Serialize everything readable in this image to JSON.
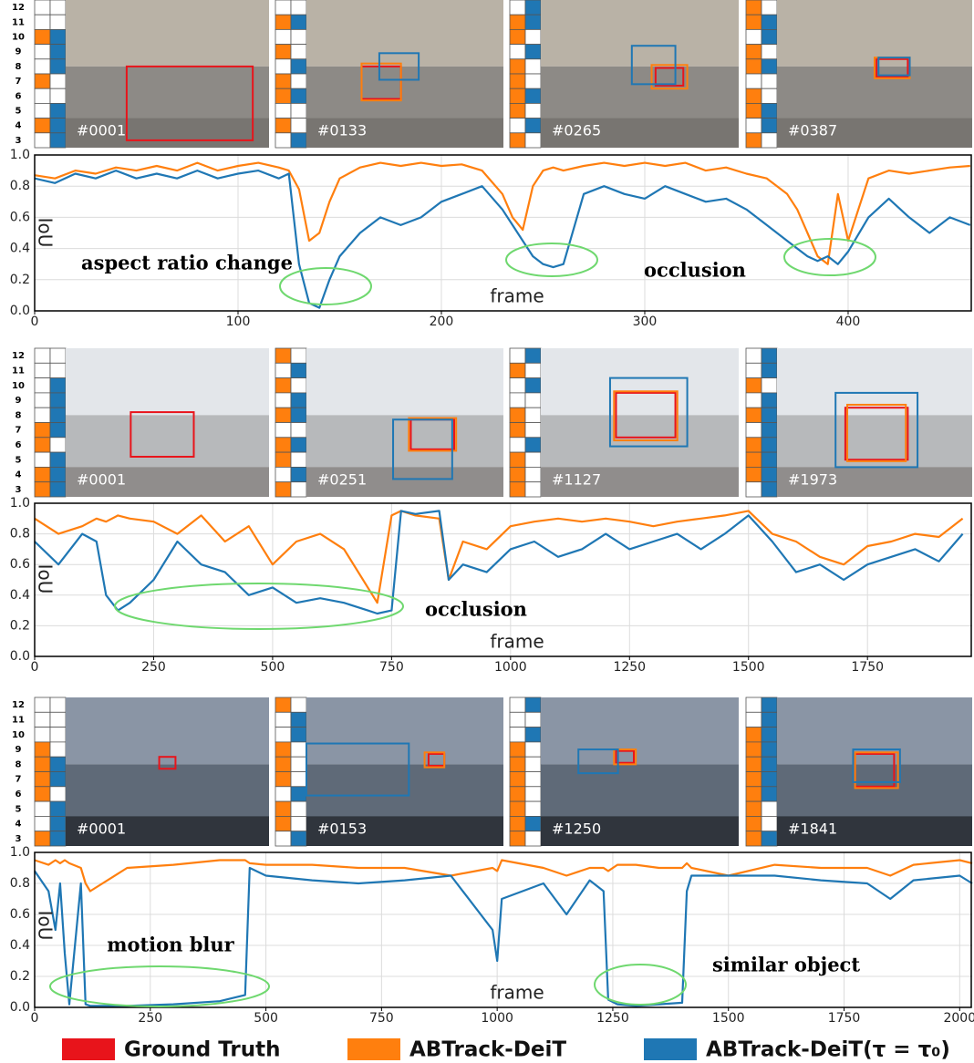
{
  "ground_truth": {
    "name": "Ground Truth",
    "color": "#e8141b"
  },
  "chart_data": [
    {
      "type": "line",
      "x_label": "frame",
      "y_label": "IoU",
      "annotations": [
        "aspect ratio change",
        "occlusion"
      ],
      "layer_labels": [
        "12",
        "11",
        "10",
        "9",
        "8",
        "7",
        "6",
        "5",
        "4",
        "3"
      ],
      "frames": [
        {
          "label": "#0001",
          "orange": [
            0,
            0,
            1,
            0,
            0,
            1,
            0,
            0,
            1,
            0
          ],
          "blue": [
            0,
            0,
            1,
            1,
            1,
            0,
            0,
            1,
            1,
            1
          ]
        },
        {
          "label": "#0133",
          "orange": [
            0,
            1,
            0,
            1,
            0,
            1,
            1,
            0,
            1,
            0
          ],
          "blue": [
            0,
            1,
            0,
            0,
            1,
            0,
            1,
            0,
            0,
            1
          ]
        },
        {
          "label": "#0265",
          "orange": [
            0,
            1,
            1,
            0,
            1,
            1,
            1,
            1,
            0,
            1
          ],
          "blue": [
            1,
            1,
            0,
            1,
            0,
            0,
            1,
            0,
            1,
            0
          ]
        },
        {
          "label": "#0387",
          "orange": [
            1,
            1,
            0,
            1,
            1,
            0,
            1,
            1,
            0,
            1
          ],
          "blue": [
            0,
            1,
            1,
            0,
            1,
            0,
            0,
            1,
            1,
            0
          ]
        }
      ],
      "x": [
        0,
        10,
        20,
        30,
        40,
        50,
        60,
        70,
        80,
        90,
        100,
        110,
        120,
        125,
        130,
        135,
        140,
        145,
        150,
        160,
        170,
        180,
        190,
        200,
        210,
        220,
        230,
        235,
        240,
        245,
        250,
        255,
        260,
        270,
        280,
        290,
        300,
        310,
        320,
        330,
        340,
        350,
        360,
        370,
        375,
        380,
        385,
        390,
        395,
        400,
        410,
        420,
        430,
        440,
        450,
        460
      ],
      "series": [
        {
          "name": "ABTrack-DeiT",
          "color": "#ff7f0e",
          "values": [
            0.87,
            0.85,
            0.9,
            0.88,
            0.92,
            0.9,
            0.93,
            0.9,
            0.95,
            0.9,
            0.93,
            0.95,
            0.92,
            0.9,
            0.78,
            0.45,
            0.5,
            0.7,
            0.85,
            0.92,
            0.95,
            0.93,
            0.95,
            0.93,
            0.94,
            0.9,
            0.75,
            0.6,
            0.52,
            0.8,
            0.9,
            0.92,
            0.9,
            0.93,
            0.95,
            0.93,
            0.95,
            0.93,
            0.95,
            0.9,
            0.92,
            0.88,
            0.85,
            0.75,
            0.65,
            0.5,
            0.35,
            0.3,
            0.75,
            0.45,
            0.85,
            0.9,
            0.88,
            0.9,
            0.92,
            0.93
          ]
        },
        {
          "name": "ABTrack-DeiT(τ = τ₀)",
          "color": "#1f77b4",
          "values": [
            0.85,
            0.82,
            0.88,
            0.85,
            0.9,
            0.85,
            0.88,
            0.85,
            0.9,
            0.85,
            0.88,
            0.9,
            0.85,
            0.88,
            0.3,
            0.05,
            0.02,
            0.2,
            0.35,
            0.5,
            0.6,
            0.55,
            0.6,
            0.7,
            0.75,
            0.8,
            0.65,
            0.55,
            0.45,
            0.35,
            0.3,
            0.28,
            0.3,
            0.75,
            0.8,
            0.75,
            0.72,
            0.8,
            0.75,
            0.7,
            0.72,
            0.65,
            0.55,
            0.45,
            0.4,
            0.35,
            0.32,
            0.35,
            0.3,
            0.38,
            0.6,
            0.72,
            0.6,
            0.5,
            0.6,
            0.55
          ]
        }
      ],
      "xlim": [
        0,
        461
      ],
      "xticks": [
        0,
        100,
        200,
        300,
        400
      ],
      "ylim": [
        0,
        1
      ],
      "yticks": [
        {
          "value": 0,
          "label": "0.0"
        },
        {
          "value": 0.2,
          "label": "0.2"
        },
        {
          "value": 0.4,
          "label": "0.4"
        },
        {
          "value": 0.6,
          "label": "0.6"
        },
        {
          "value": 0.8,
          "label": "0.8"
        },
        {
          "value": 1,
          "label": "1.0"
        }
      ],
      "grid": true
    },
    {
      "type": "line",
      "x_label": "frame",
      "y_label": "IoU",
      "annotations": [
        "occlusion"
      ],
      "layer_labels": [
        "12",
        "11",
        "10",
        "9",
        "8",
        "7",
        "6",
        "5",
        "4",
        "3"
      ],
      "frames": [
        {
          "label": "#0001",
          "orange": [
            0,
            0,
            0,
            0,
            0,
            1,
            1,
            0,
            1,
            1
          ],
          "blue": [
            0,
            0,
            1,
            1,
            1,
            1,
            0,
            1,
            1,
            1
          ]
        },
        {
          "label": "#0251",
          "orange": [
            1,
            0,
            1,
            0,
            1,
            0,
            1,
            1,
            0,
            1
          ],
          "blue": [
            0,
            1,
            0,
            1,
            1,
            0,
            1,
            0,
            1,
            0
          ]
        },
        {
          "label": "#1127",
          "orange": [
            0,
            1,
            0,
            0,
            1,
            1,
            0,
            1,
            1,
            1
          ],
          "blue": [
            1,
            0,
            1,
            0,
            0,
            0,
            1,
            0,
            0,
            0
          ]
        },
        {
          "label": "#1973",
          "orange": [
            0,
            0,
            1,
            0,
            1,
            0,
            1,
            1,
            1,
            0
          ],
          "blue": [
            1,
            1,
            0,
            1,
            1,
            1,
            1,
            1,
            1,
            1
          ]
        }
      ],
      "x": [
        0,
        50,
        100,
        130,
        150,
        175,
        200,
        250,
        300,
        350,
        400,
        450,
        500,
        550,
        600,
        650,
        700,
        720,
        750,
        770,
        800,
        850,
        870,
        900,
        950,
        1000,
        1050,
        1100,
        1150,
        1200,
        1250,
        1300,
        1350,
        1400,
        1450,
        1500,
        1550,
        1600,
        1650,
        1700,
        1750,
        1800,
        1850,
        1900,
        1950
      ],
      "series": [
        {
          "color": "#ff7f0e",
          "values": [
            0.9,
            0.8,
            0.85,
            0.9,
            0.88,
            0.92,
            0.9,
            0.88,
            0.8,
            0.92,
            0.75,
            0.85,
            0.6,
            0.75,
            0.8,
            0.7,
            0.45,
            0.35,
            0.92,
            0.95,
            0.92,
            0.9,
            0.5,
            0.75,
            0.7,
            0.85,
            0.88,
            0.9,
            0.88,
            0.9,
            0.88,
            0.85,
            0.88,
            0.9,
            0.92,
            0.95,
            0.8,
            0.75,
            0.65,
            0.6,
            0.72,
            0.75,
            0.8,
            0.78,
            0.9
          ]
        },
        {
          "color": "#1f77b4",
          "values": [
            0.75,
            0.6,
            0.8,
            0.75,
            0.4,
            0.3,
            0.35,
            0.5,
            0.75,
            0.6,
            0.55,
            0.4,
            0.45,
            0.35,
            0.38,
            0.35,
            0.3,
            0.28,
            0.3,
            0.95,
            0.93,
            0.95,
            0.5,
            0.6,
            0.55,
            0.7,
            0.75,
            0.65,
            0.7,
            0.8,
            0.7,
            0.75,
            0.8,
            0.7,
            0.8,
            0.92,
            0.75,
            0.55,
            0.6,
            0.5,
            0.6,
            0.65,
            0.7,
            0.62,
            0.8
          ]
        }
      ],
      "xlim": [
        0,
        1970
      ],
      "xticks": [
        0,
        250,
        500,
        750,
        1000,
        1250,
        1500,
        1750
      ],
      "ylim": [
        0,
        1
      ],
      "yticks": [
        {
          "value": 0,
          "label": "0.0"
        },
        {
          "value": 0.2,
          "label": "0.2"
        },
        {
          "value": 0.4,
          "label": "0.4"
        },
        {
          "value": 0.6,
          "label": "0.6"
        },
        {
          "value": 0.8,
          "label": "0.8"
        },
        {
          "value": 1,
          "label": "1.0"
        }
      ],
      "grid": true
    },
    {
      "type": "line",
      "x_label": "frame",
      "y_label": "IoU",
      "annotations": [
        "motion blur",
        "similar object"
      ],
      "layer_labels": [
        "12",
        "11",
        "10",
        "9",
        "8",
        "7",
        "6",
        "5",
        "4",
        "3"
      ],
      "frames": [
        {
          "label": "#0001",
          "orange": [
            0,
            0,
            0,
            1,
            1,
            1,
            1,
            0,
            0,
            1
          ],
          "blue": [
            0,
            0,
            0,
            0,
            1,
            1,
            0,
            1,
            1,
            1
          ]
        },
        {
          "label": "#0153",
          "orange": [
            1,
            0,
            0,
            1,
            1,
            1,
            0,
            1,
            1,
            0
          ],
          "blue": [
            0,
            1,
            1,
            0,
            0,
            0,
            1,
            0,
            0,
            1
          ]
        },
        {
          "label": "#1250",
          "orange": [
            0,
            0,
            0,
            1,
            1,
            1,
            1,
            1,
            1,
            1
          ],
          "blue": [
            1,
            0,
            1,
            0,
            0,
            0,
            0,
            0,
            1,
            0
          ]
        },
        {
          "label": "#1841",
          "orange": [
            0,
            0,
            1,
            1,
            1,
            1,
            1,
            1,
            1,
            1
          ],
          "blue": [
            1,
            1,
            1,
            1,
            1,
            1,
            1,
            0,
            0,
            1
          ]
        }
      ],
      "x": [
        0,
        30,
        45,
        55,
        65,
        75,
        100,
        110,
        120,
        200,
        300,
        400,
        455,
        465,
        500,
        600,
        700,
        800,
        900,
        990,
        1000,
        1010,
        1100,
        1150,
        1200,
        1230,
        1240,
        1260,
        1300,
        1350,
        1400,
        1410,
        1420,
        1500,
        1600,
        1700,
        1800,
        1850,
        1900,
        2000,
        2027
      ],
      "series": [
        {
          "color": "#ff7f0e",
          "values": [
            0.95,
            0.92,
            0.95,
            0.93,
            0.95,
            0.93,
            0.9,
            0.8,
            0.75,
            0.9,
            0.92,
            0.95,
            0.95,
            0.93,
            0.92,
            0.92,
            0.9,
            0.9,
            0.85,
            0.9,
            0.88,
            0.95,
            0.9,
            0.85,
            0.9,
            0.9,
            0.88,
            0.92,
            0.92,
            0.9,
            0.9,
            0.93,
            0.9,
            0.85,
            0.92,
            0.9,
            0.9,
            0.85,
            0.92,
            0.95,
            0.93
          ]
        },
        {
          "color": "#1f77b4",
          "values": [
            0.88,
            0.75,
            0.5,
            0.8,
            0.35,
            0.02,
            0.8,
            0.02,
            0.01,
            0.01,
            0.02,
            0.04,
            0.08,
            0.9,
            0.85,
            0.82,
            0.8,
            0.82,
            0.85,
            0.5,
            0.3,
            0.7,
            0.8,
            0.6,
            0.82,
            0.75,
            0.05,
            0.02,
            0.01,
            0.02,
            0.03,
            0.75,
            0.85,
            0.85,
            0.85,
            0.82,
            0.8,
            0.7,
            0.82,
            0.85,
            0.8
          ]
        }
      ],
      "xlim": [
        0,
        2027
      ],
      "xticks": [
        0,
        250,
        500,
        750,
        1000,
        1250,
        1500,
        1750,
        2000
      ],
      "ylim": [
        0,
        1
      ],
      "yticks": [
        {
          "value": 0,
          "label": "0.0"
        },
        {
          "value": 0.2,
          "label": "0.2"
        },
        {
          "value": 0.4,
          "label": "0.4"
        },
        {
          "value": 0.6,
          "label": "0.6"
        },
        {
          "value": 0.8,
          "label": "0.8"
        },
        {
          "value": 1,
          "label": "1.0"
        }
      ],
      "grid": true
    }
  ]
}
